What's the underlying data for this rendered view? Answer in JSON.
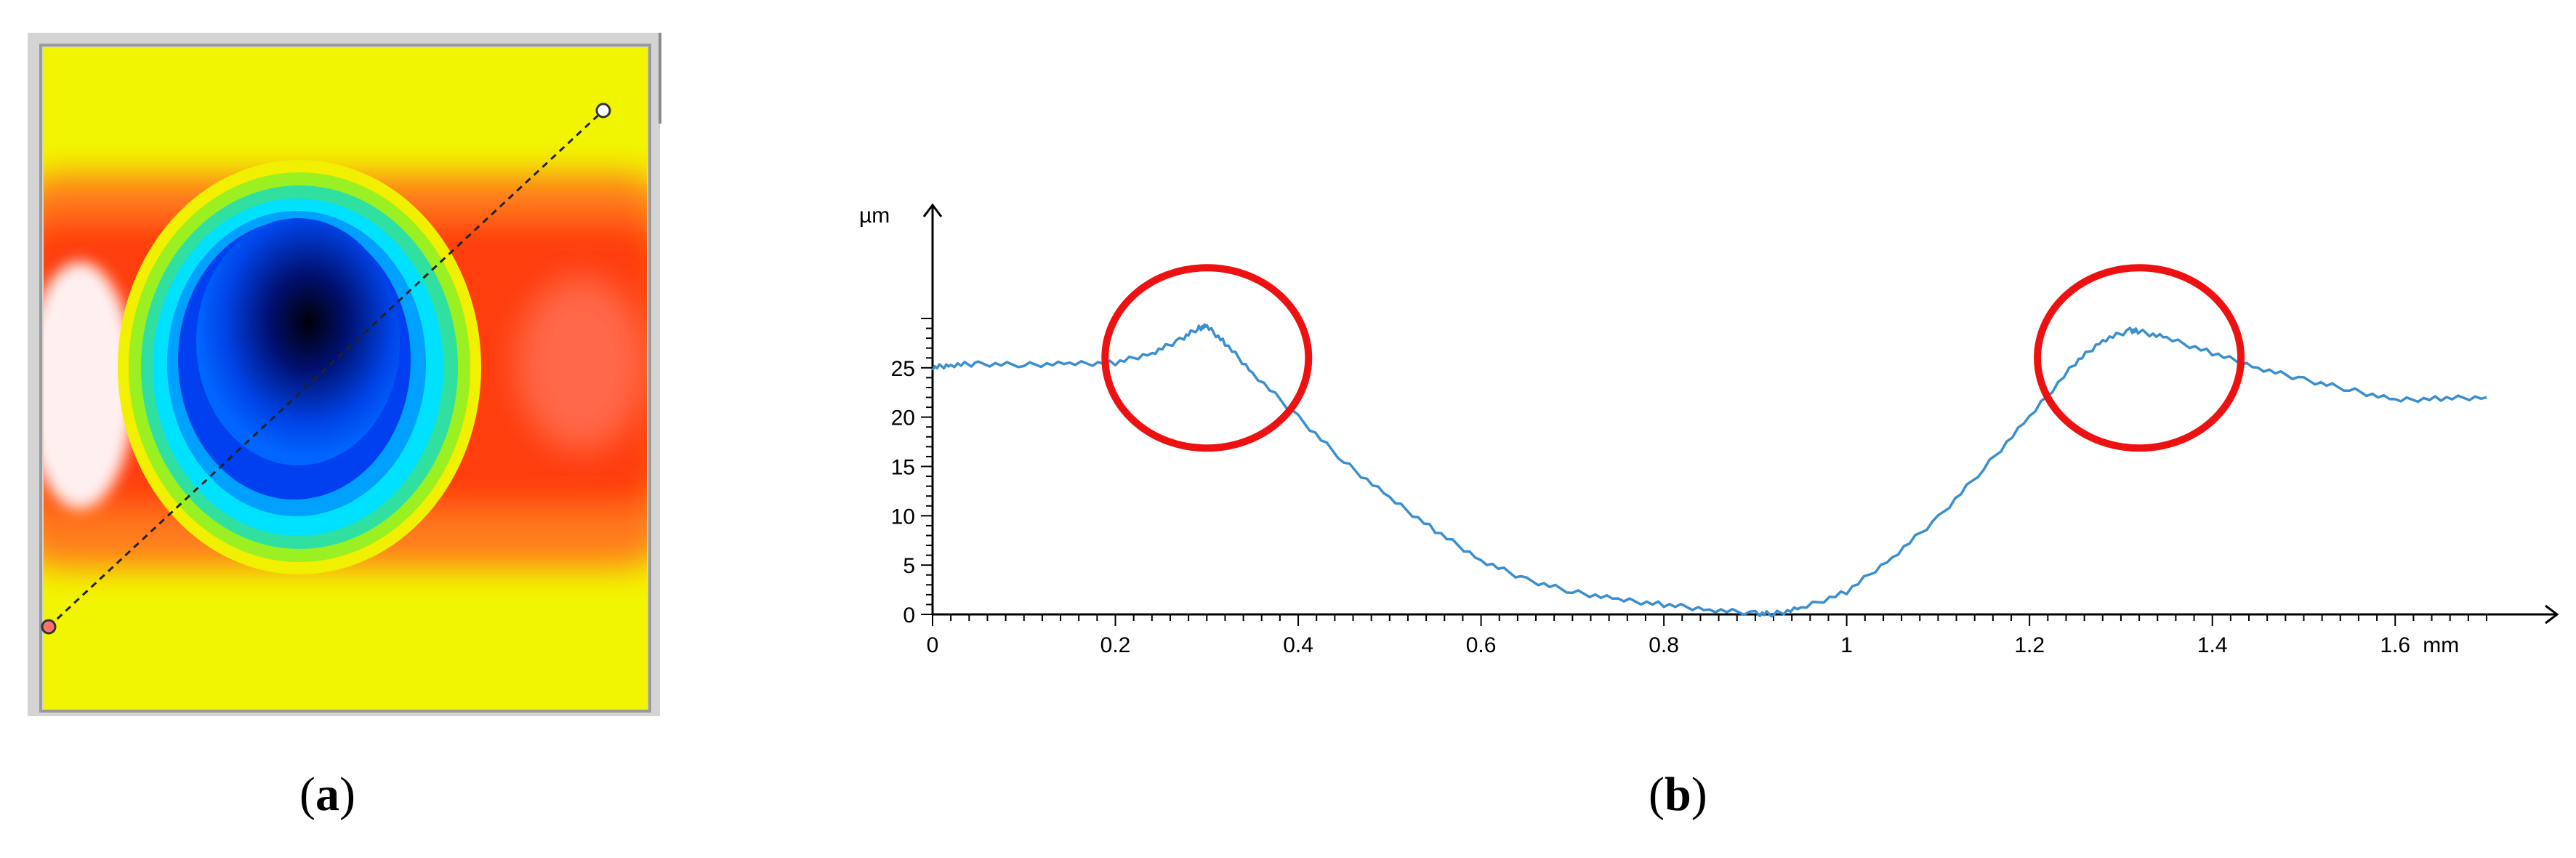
{
  "panel_a": {
    "label": "a",
    "colors": {
      "background_yellow": "#f2f500",
      "band_orange": "#ff7a1a",
      "band_red": "#ff3c0a",
      "white_patch": "#fff0f0",
      "ring_cyan": "#00e0ff",
      "ring_blue": "#0040f0",
      "center_black": "#000010",
      "marker_red": "#ff7070",
      "frame_gray": "#c8c8c8"
    },
    "icons": [
      "line-start-marker",
      "line-end-marker"
    ]
  },
  "panel_b": {
    "label": "b",
    "colors": {
      "profile_line": "#3a8fd0",
      "highlight_circle": "#ee1111",
      "axis": "#000000"
    }
  },
  "chart_data": {
    "type": "line",
    "title": "",
    "xlabel": "mm",
    "ylabel": "µm",
    "xlim": [
      0,
      1.7
    ],
    "ylim": [
      0,
      30
    ],
    "x_ticks": [
      {
        "value": 0,
        "label": "0"
      },
      {
        "value": 0.2,
        "label": "0.2"
      },
      {
        "value": 0.4,
        "label": "0.4"
      },
      {
        "value": 0.6,
        "label": "0.6"
      },
      {
        "value": 0.8,
        "label": "0.8"
      },
      {
        "value": 1,
        "label": "1"
      },
      {
        "value": 1.2,
        "label": "1.2"
      },
      {
        "value": 1.4,
        "label": "1.4"
      },
      {
        "value": 1.6,
        "label": "1.6"
      }
    ],
    "y_ticks": [
      {
        "value": 0,
        "label": "0"
      },
      {
        "value": 5,
        "label": "5"
      },
      {
        "value": 10,
        "label": "10"
      },
      {
        "value": 15,
        "label": "15"
      },
      {
        "value": 20,
        "label": "20"
      },
      {
        "value": 25,
        "label": "25"
      }
    ],
    "grid": false,
    "series": [
      {
        "x": [
          0,
          0.02,
          0.05,
          0.1,
          0.15,
          0.2,
          0.24,
          0.27,
          0.29,
          0.3,
          0.32,
          0.35,
          0.4,
          0.45,
          0.5,
          0.55,
          0.6,
          0.65,
          0.7,
          0.75,
          0.8,
          0.85,
          0.9,
          0.92,
          0.95,
          1.0,
          1.05,
          1.1,
          1.15,
          1.2,
          1.25,
          1.28,
          1.31,
          1.32,
          1.35,
          1.4,
          1.45,
          1.5,
          1.55,
          1.6,
          1.65,
          1.7
        ],
        "y": [
          25,
          25.3,
          25.4,
          25.3,
          25.4,
          25.5,
          26.5,
          27.8,
          29,
          29.2,
          27.5,
          24.5,
          20,
          15.5,
          11.8,
          8.5,
          5.5,
          3.5,
          2.3,
          1.5,
          1,
          0.5,
          0.1,
          0.05,
          0.6,
          2.3,
          5.8,
          9.8,
          14.8,
          20,
          25.5,
          27.8,
          28.8,
          28.7,
          28,
          26.5,
          25,
          23.8,
          22.8,
          21.7,
          21.9,
          22
        ]
      }
    ],
    "annotations": [
      {
        "shape": "circle",
        "x": 0.3,
        "y": 26
      },
      {
        "shape": "circle",
        "x": 1.32,
        "y": 26
      }
    ]
  }
}
